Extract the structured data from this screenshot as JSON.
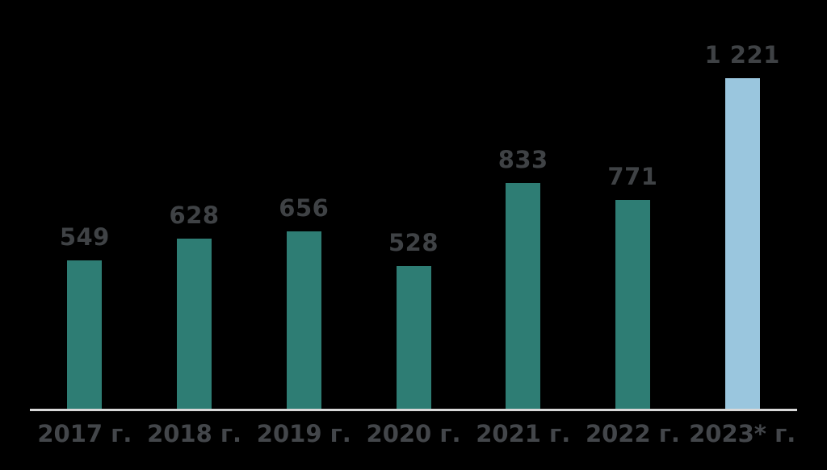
{
  "chart_data": {
    "type": "bar",
    "categories": [
      "2017 г.",
      "2018 г.",
      "2019 г.",
      "2020 г.",
      "2021 г.",
      "2022 г.",
      "2023* г."
    ],
    "values": [
      549,
      628,
      656,
      528,
      833,
      771,
      1221
    ],
    "value_labels": [
      "549",
      "628",
      "656",
      "528",
      "833",
      "771",
      "1 221"
    ],
    "title": "",
    "xlabel": "",
    "ylabel": "",
    "ylim": [
      0,
      1221
    ],
    "grid": false,
    "legend": false,
    "bar_colors": [
      "#2E7D74",
      "#2E7D74",
      "#2E7D74",
      "#2E7D74",
      "#2E7D74",
      "#2E7D74",
      "#9AC6DE"
    ],
    "colors": {
      "bar_default": "#2E7D74",
      "bar_highlight": "#9AC6DE",
      "value_label_text": "#3F4245",
      "axis_label_text": "#43464A",
      "axis_line": "#D9D9D9",
      "background": "#000000"
    }
  }
}
